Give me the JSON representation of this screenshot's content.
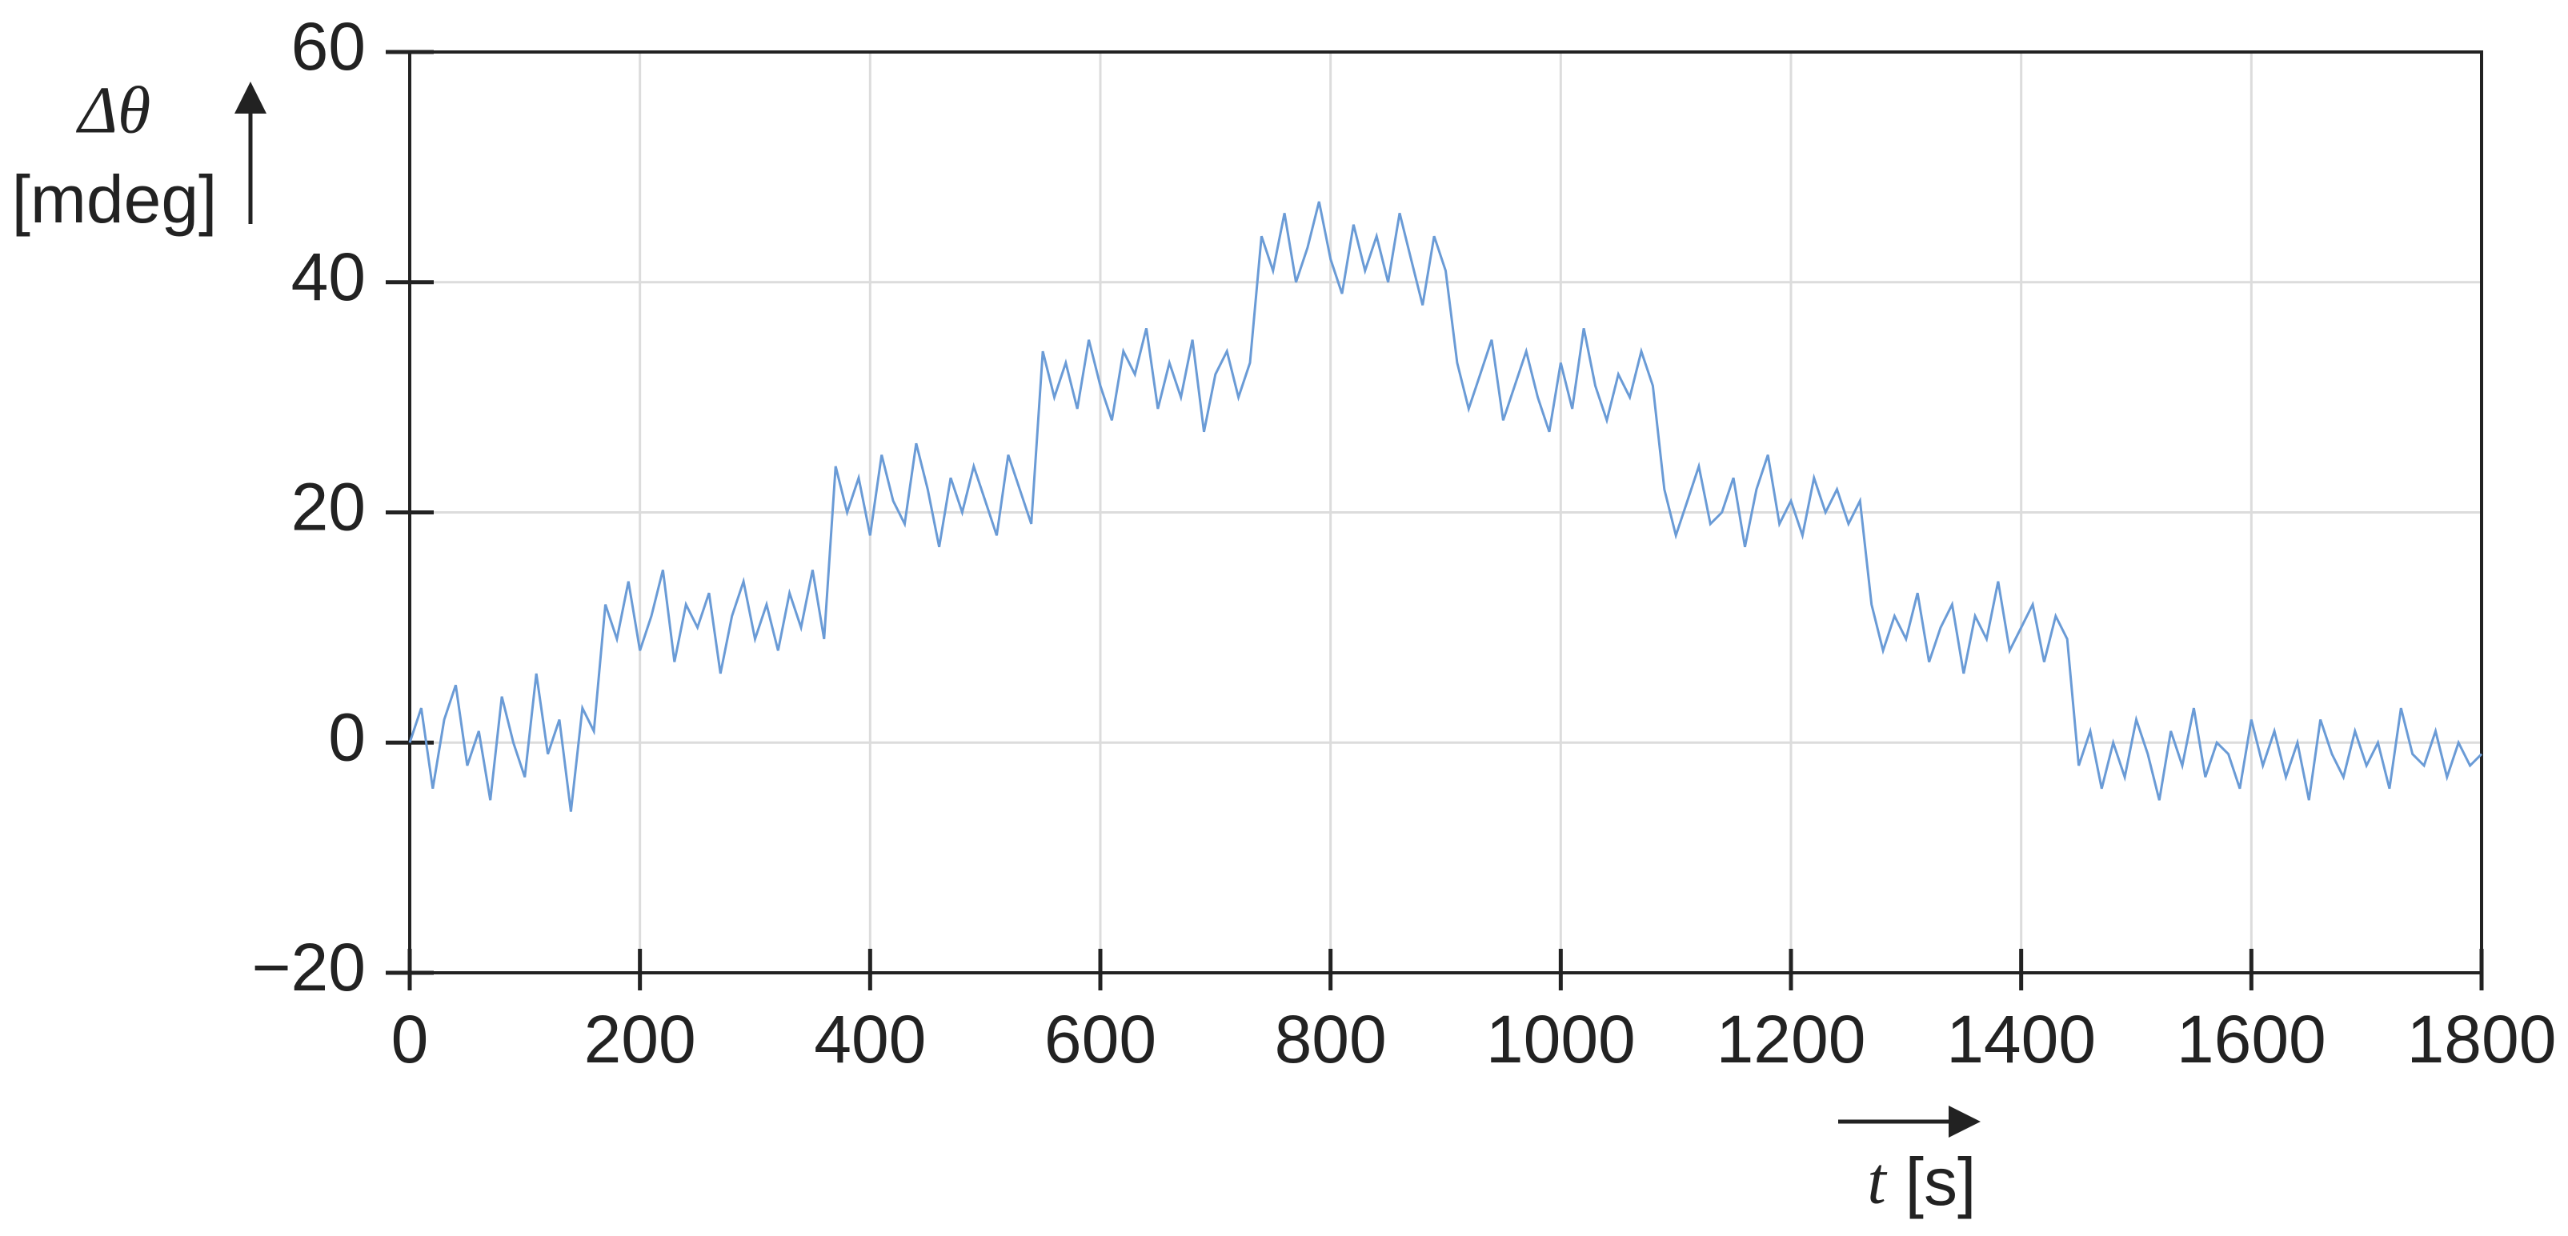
{
  "chart_data": {
    "type": "line",
    "y_label": "Δθ",
    "y_unit": "[mdeg]",
    "x_label": "t",
    "x_unit": "[s]",
    "color": "#6a9bd6",
    "grid": true,
    "xlim": [
      0,
      1800
    ],
    "xticks": [
      0,
      200,
      400,
      600,
      800,
      1000,
      1200,
      1400,
      1600,
      1800
    ],
    "ylim": [
      -20,
      60
    ],
    "yticks": [
      {
        "value": -20,
        "label": "−20"
      },
      0,
      20,
      40,
      60
    ],
    "x": [
      0,
      10,
      20,
      30,
      40,
      50,
      60,
      70,
      80,
      90,
      100,
      110,
      120,
      130,
      140,
      150,
      160,
      170,
      180,
      190,
      200,
      210,
      220,
      230,
      240,
      250,
      260,
      270,
      280,
      290,
      300,
      310,
      320,
      330,
      340,
      350,
      360,
      370,
      380,
      390,
      400,
      410,
      420,
      430,
      440,
      450,
      460,
      470,
      480,
      490,
      500,
      510,
      520,
      530,
      540,
      550,
      560,
      570,
      580,
      590,
      600,
      610,
      620,
      630,
      640,
      650,
      660,
      670,
      680,
      690,
      700,
      710,
      720,
      730,
      740,
      750,
      760,
      770,
      780,
      790,
      800,
      810,
      820,
      830,
      840,
      850,
      860,
      870,
      880,
      890,
      900,
      910,
      920,
      930,
      940,
      950,
      960,
      970,
      980,
      990,
      1000,
      1010,
      1020,
      1030,
      1040,
      1050,
      1060,
      1070,
      1080,
      1090,
      1100,
      1110,
      1120,
      1130,
      1140,
      1150,
      1160,
      1170,
      1180,
      1190,
      1200,
      1210,
      1220,
      1230,
      1240,
      1250,
      1260,
      1270,
      1280,
      1290,
      1300,
      1310,
      1320,
      1330,
      1340,
      1350,
      1360,
      1370,
      1380,
      1390,
      1400,
      1410,
      1420,
      1430,
      1440,
      1450,
      1460,
      1470,
      1480,
      1490,
      1500,
      1510,
      1520,
      1530,
      1540,
      1550,
      1560,
      1570,
      1580,
      1590,
      1600,
      1610,
      1620,
      1630,
      1640,
      1650,
      1660,
      1670,
      1680,
      1690,
      1700,
      1710,
      1720,
      1730,
      1740,
      1750,
      1760,
      1770,
      1780,
      1790,
      1800
    ],
    "values": [
      0,
      3,
      -4,
      2,
      5,
      -2,
      1,
      -5,
      4,
      0,
      -3,
      6,
      -1,
      2,
      -6,
      3,
      1,
      12,
      9,
      14,
      8,
      11,
      15,
      7,
      12,
      10,
      13,
      6,
      11,
      14,
      9,
      12,
      8,
      13,
      10,
      15,
      9,
      24,
      20,
      23,
      18,
      25,
      21,
      19,
      26,
      22,
      17,
      23,
      20,
      24,
      21,
      18,
      25,
      22,
      19,
      34,
      30,
      33,
      29,
      35,
      31,
      28,
      34,
      32,
      36,
      29,
      33,
      30,
      35,
      27,
      32,
      34,
      30,
      33,
      44,
      41,
      46,
      40,
      43,
      47,
      42,
      39,
      45,
      41,
      44,
      40,
      46,
      42,
      38,
      44,
      41,
      33,
      29,
      32,
      35,
      28,
      31,
      34,
      30,
      27,
      33,
      29,
      36,
      31,
      28,
      32,
      30,
      34,
      31,
      22,
      18,
      21,
      24,
      19,
      20,
      23,
      17,
      22,
      25,
      19,
      21,
      18,
      23,
      20,
      22,
      19,
      21,
      12,
      8,
      11,
      9,
      13,
      7,
      10,
      12,
      6,
      11,
      9,
      14,
      8,
      10,
      12,
      7,
      11,
      9,
      -2,
      1,
      -4,
      0,
      -3,
      2,
      -1,
      -5,
      1,
      -2,
      3,
      -3,
      0,
      -1,
      -4,
      2,
      -2,
      1,
      -3,
      0,
      -5,
      2,
      -1,
      -3,
      1,
      -2,
      0,
      -4,
      3,
      -1,
      -2,
      1,
      -3,
      0,
      -2,
      -1
    ]
  }
}
